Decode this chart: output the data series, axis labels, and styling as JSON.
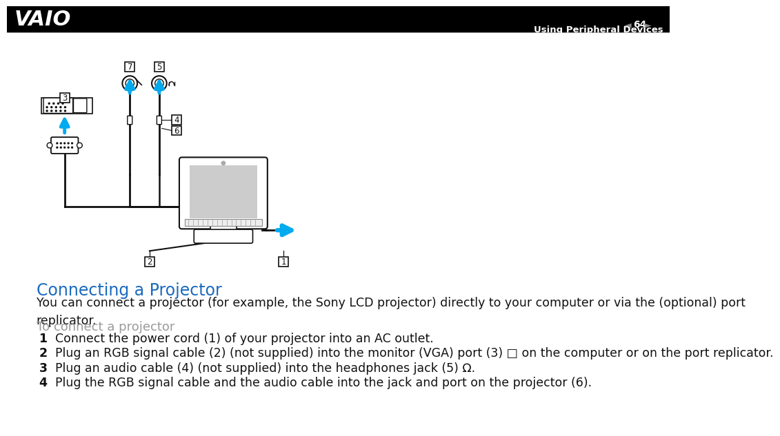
{
  "page_number": "64",
  "header_text": "Using Peripheral Devices",
  "header_bg": "#000000",
  "header_text_color": "#ffffff",
  "section_title": "Connecting a Projector",
  "section_title_color": "#1a6abf",
  "intro_text": "You can connect a projector (for example, the Sony LCD projector) directly to your computer or via the (optional) port\nreplicator.",
  "subheading": "To connect a projector",
  "subheading_color": "#999999",
  "steps": [
    "Connect the power cord (1) of your projector into an AC outlet.",
    "Plug an RGB signal cable (2) (not supplied) into the monitor (VGA) port (3) □ on the computer or on the port replicator.",
    "Plug an audio cable (4) (not supplied) into the headphones jack (5) Ω.",
    "Plug the RGB signal cable and the audio cable into the jack and port on the projector (6)."
  ],
  "arrow_color": "#00aaee",
  "cable_color": "#111111",
  "body_bg": "#ffffff",
  "body_text_color": "#111111",
  "font_size_body": 12.5,
  "font_size_title": 17,
  "font_size_subheading": 13
}
